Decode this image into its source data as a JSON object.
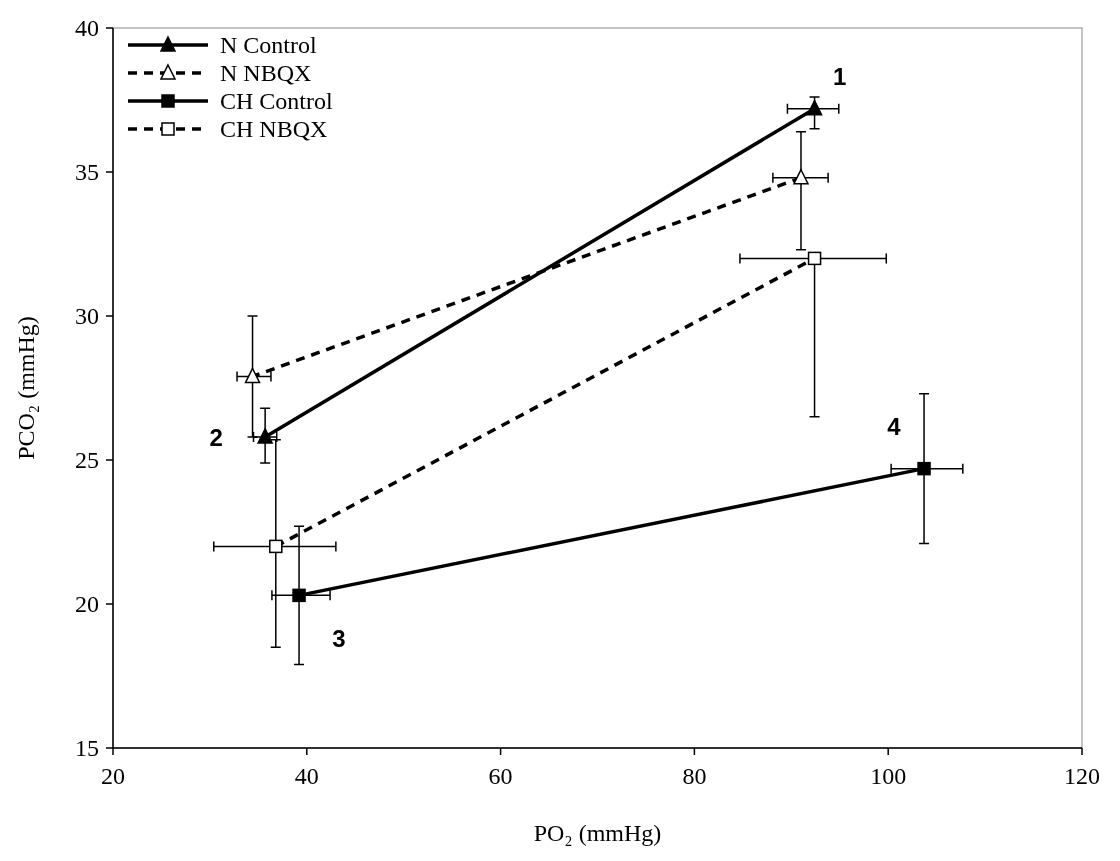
{
  "chart_data": {
    "type": "line",
    "xlabel": "PO₂ (mmHg)",
    "ylabel": "PCO₂ (mmHg)",
    "xlim": [
      20,
      120
    ],
    "xticks": [
      20,
      40,
      60,
      80,
      100,
      120
    ],
    "ylim": [
      15,
      40
    ],
    "yticks": [
      15,
      20,
      25,
      30,
      35,
      40
    ],
    "grid": false,
    "legend": "top left",
    "series": [
      {
        "name": "N Control",
        "color": "#000000",
        "marker": "triangle",
        "line_style": "solid",
        "x": [
          92.4,
          35.7
        ],
        "values": [
          37.2,
          25.8
        ],
        "errors": [
          [
            36.5,
            37.6
          ],
          [
            24.9,
            26.8
          ]
        ],
        "xerrors": [
          [
            89.6,
            94.9
          ],
          [
            34.5,
            36.9
          ]
        ]
      },
      {
        "name": "N NBQX",
        "color": "#000000",
        "marker": "triangle",
        "line_style": "dashed",
        "x": [
          91.0,
          34.4
        ],
        "values": [
          34.8,
          27.9
        ],
        "errors": [
          [
            32.3,
            36.4
          ],
          [
            25.8,
            30.0
          ]
        ],
        "xerrors": [
          [
            88.1,
            93.8
          ],
          [
            32.8,
            36.3
          ]
        ]
      },
      {
        "name": "CH Control",
        "color": "#000000",
        "marker": "square",
        "line_style": "solid",
        "x": [
          39.2,
          103.7
        ],
        "values": [
          20.3,
          24.7
        ],
        "errors": [
          [
            17.9,
            22.7
          ],
          [
            22.1,
            27.3
          ]
        ],
        "xerrors": [
          [
            36.4,
            42.4
          ],
          [
            100.3,
            107.7
          ]
        ]
      },
      {
        "name": "CH NBQX",
        "color": "#000000",
        "marker": "square",
        "line_style": "dashed",
        "x": [
          36.8,
          92.4
        ],
        "values": [
          22.0,
          32.0
        ],
        "errors": [
          [
            18.5,
            25.7
          ],
          [
            26.5,
            32.0
          ]
        ],
        "xerrors": [
          [
            30.4,
            43.0
          ],
          [
            84.7,
            99.8
          ]
        ]
      }
    ],
    "annotations": [
      {
        "text": "1",
        "x": 92.4,
        "y": 37.2
      },
      {
        "text": "2",
        "x": 35.7,
        "y": 25.8
      },
      {
        "text": "3",
        "x": 39.2,
        "y": 20.3
      },
      {
        "text": "4",
        "x": 103.7,
        "y": 24.7
      }
    ]
  }
}
